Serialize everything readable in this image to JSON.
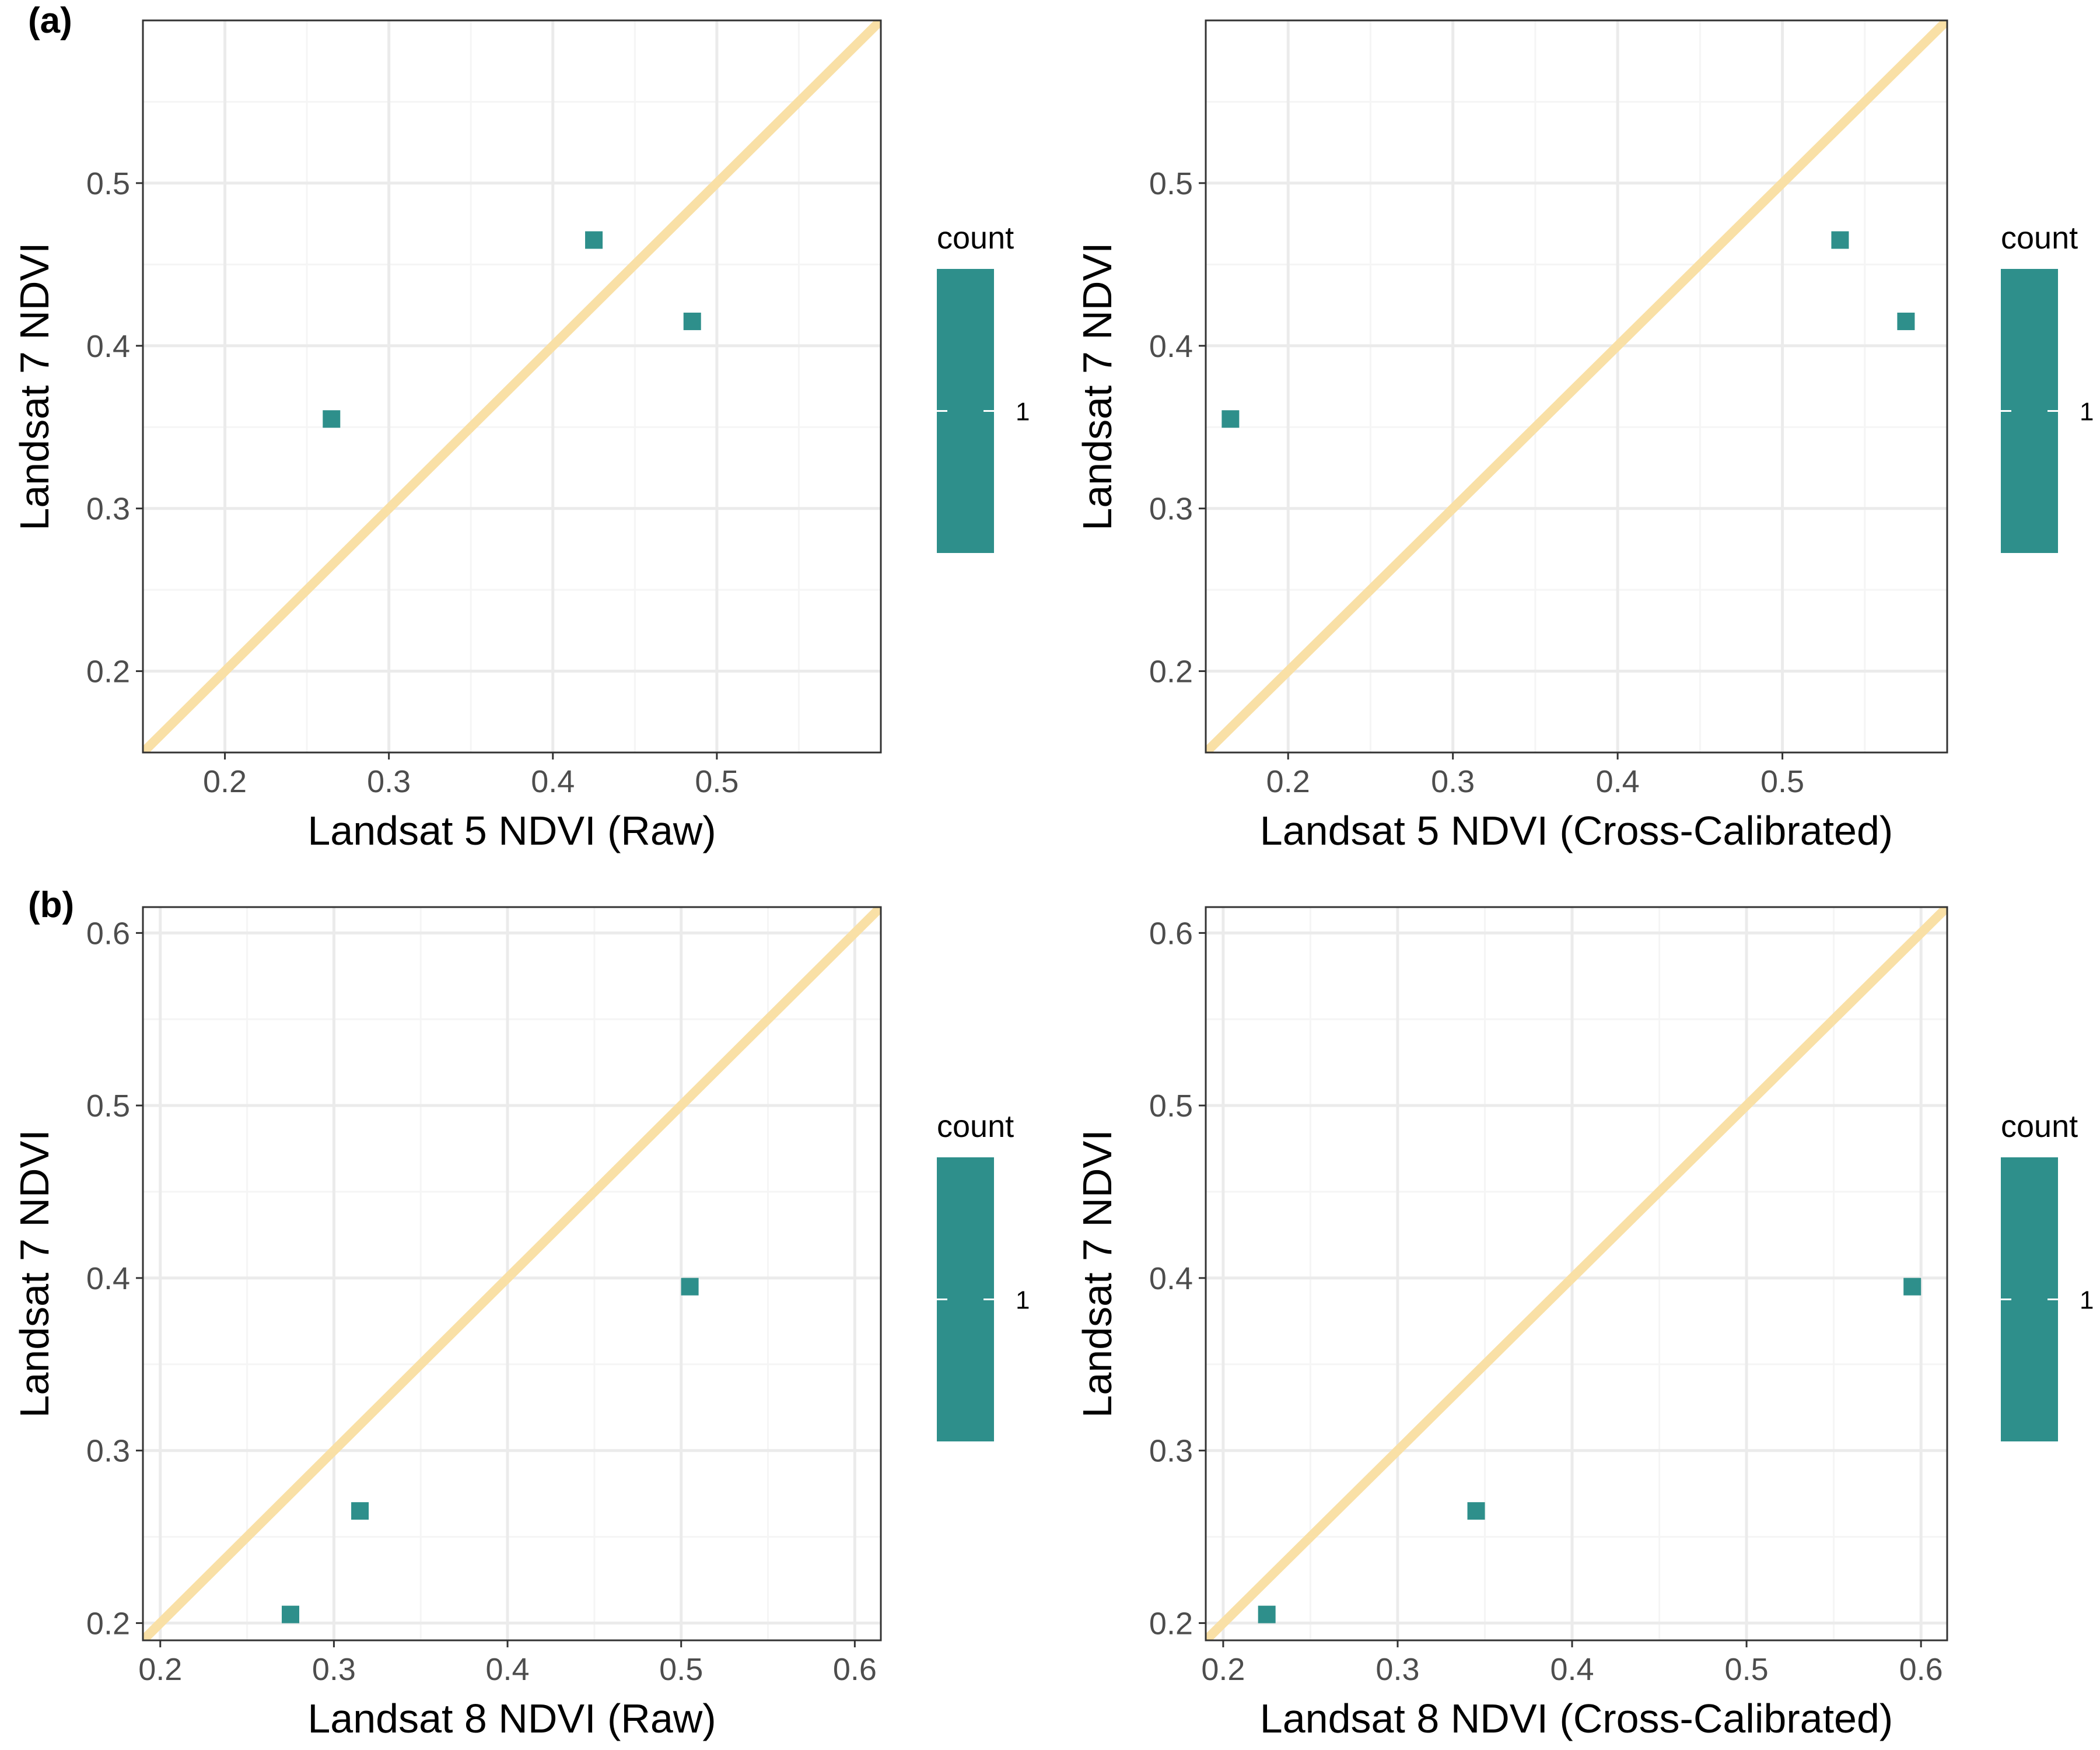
{
  "colors": {
    "point": "#2E8F8B",
    "identity_line": "#F9E0A6",
    "grid_major": "#EBEBEB",
    "grid_minor": "#F5F5F5",
    "panel_border": "#333333"
  },
  "chart_data": [
    {
      "type": "scatter",
      "panel_tag": "(a)",
      "xlabel": "Landsat 5 NDVI (Raw)",
      "ylabel": "Landsat 7 NDVI",
      "xlim": [
        0.15,
        0.6
      ],
      "ylim": [
        0.15,
        0.6
      ],
      "xticks": [
        0.2,
        0.3,
        0.4,
        0.5
      ],
      "yticks": [
        0.2,
        0.3,
        0.4,
        0.5
      ],
      "x": [
        0.265,
        0.425,
        0.485
      ],
      "y": [
        0.355,
        0.465,
        0.415
      ],
      "reference_line": "y = x",
      "legend": {
        "title": "count",
        "labels": [
          "1"
        ],
        "placement": "right"
      },
      "grid": true
    },
    {
      "type": "scatter",
      "panel_tag": "",
      "xlabel": "Landsat 5 NDVI (Cross-Calibrated)",
      "ylabel": "Landsat 7 NDVI",
      "xlim": [
        0.15,
        0.6
      ],
      "ylim": [
        0.15,
        0.6
      ],
      "xticks": [
        0.2,
        0.3,
        0.4,
        0.5
      ],
      "yticks": [
        0.2,
        0.3,
        0.4,
        0.5
      ],
      "x": [
        0.165,
        0.535,
        0.575
      ],
      "y": [
        0.355,
        0.465,
        0.415
      ],
      "reference_line": "y = x",
      "legend": {
        "title": "count",
        "labels": [
          "1"
        ],
        "placement": "right"
      },
      "grid": true
    },
    {
      "type": "scatter",
      "panel_tag": "(b)",
      "xlabel": "Landsat 8 NDVI (Raw)",
      "ylabel": "Landsat 7 NDVI",
      "xlim": [
        0.19,
        0.615
      ],
      "ylim": [
        0.19,
        0.615
      ],
      "xticks": [
        0.2,
        0.3,
        0.4,
        0.5,
        0.6
      ],
      "yticks": [
        0.2,
        0.3,
        0.4,
        0.5,
        0.6
      ],
      "x": [
        0.275,
        0.315,
        0.505
      ],
      "y": [
        0.205,
        0.265,
        0.395
      ],
      "reference_line": "y = x",
      "legend": {
        "title": "count",
        "labels": [
          "1"
        ],
        "placement": "right"
      },
      "grid": true
    },
    {
      "type": "scatter",
      "panel_tag": "",
      "xlabel": "Landsat 8 NDVI (Cross-Calibrated)",
      "ylabel": "Landsat 7 NDVI",
      "xlim": [
        0.19,
        0.615
      ],
      "ylim": [
        0.19,
        0.615
      ],
      "xticks": [
        0.2,
        0.3,
        0.4,
        0.5,
        0.6
      ],
      "yticks": [
        0.2,
        0.3,
        0.4,
        0.5,
        0.6
      ],
      "x": [
        0.225,
        0.345,
        0.595
      ],
      "y": [
        0.205,
        0.265,
        0.395
      ],
      "reference_line": "y = x",
      "legend": {
        "title": "count",
        "labels": [
          "1"
        ],
        "placement": "right"
      },
      "grid": true
    }
  ]
}
